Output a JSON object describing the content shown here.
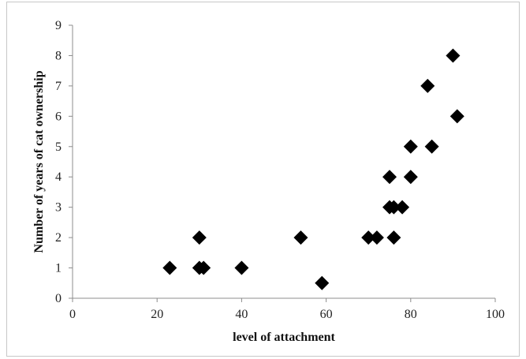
{
  "chart_data": {
    "type": "scatter",
    "title": "",
    "xlabel": "level of attachment",
    "ylabel": "Number of years of cat ownership",
    "xlim": [
      0,
      100
    ],
    "ylim": [
      0,
      9
    ],
    "x_ticks": [
      "0",
      "20",
      "40",
      "60",
      "80",
      "100"
    ],
    "y_ticks": [
      "0",
      "1",
      "2",
      "3",
      "4",
      "5",
      "6",
      "7",
      "8",
      "9"
    ],
    "grid": false,
    "legend": "none",
    "marker": "diamond",
    "marker_color": "#000000",
    "series": [
      {
        "points": [
          {
            "x": 23,
            "y": 1
          },
          {
            "x": 30,
            "y": 1
          },
          {
            "x": 31,
            "y": 1
          },
          {
            "x": 30,
            "y": 2
          },
          {
            "x": 40,
            "y": 1
          },
          {
            "x": 54,
            "y": 2
          },
          {
            "x": 59,
            "y": 0.5
          },
          {
            "x": 70,
            "y": 2
          },
          {
            "x": 72,
            "y": 2
          },
          {
            "x": 75,
            "y": 3
          },
          {
            "x": 76,
            "y": 3
          },
          {
            "x": 75,
            "y": 4
          },
          {
            "x": 76,
            "y": 2
          },
          {
            "x": 78,
            "y": 3
          },
          {
            "x": 80,
            "y": 4
          },
          {
            "x": 80,
            "y": 5
          },
          {
            "x": 84,
            "y": 7
          },
          {
            "x": 85,
            "y": 5
          },
          {
            "x": 90,
            "y": 8
          },
          {
            "x": 91,
            "y": 6
          }
        ]
      }
    ]
  }
}
